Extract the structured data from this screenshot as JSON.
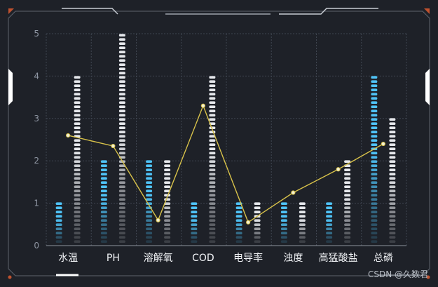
{
  "watermark": "CSDN @久数君",
  "colors": {
    "background": "#1e2128",
    "bar_blue": "#4fc3f7",
    "bar_white": "#e6e8ec",
    "line": "#d8c24a",
    "frame": "#8e949d",
    "accent": "#c0522f"
  },
  "chart_data": {
    "type": "bar",
    "categories": [
      "水温",
      "PH",
      "溶解氧",
      "COD",
      "电导率",
      "浊度",
      "高猛酸盐",
      "总磷"
    ],
    "series": [
      {
        "type": "bar",
        "style": "pictorial-segments",
        "values": [
          1,
          2,
          2,
          1,
          1,
          1,
          1,
          4
        ],
        "color": "#4fc3f7"
      },
      {
        "type": "bar",
        "style": "pictorial-segments",
        "values": [
          4,
          5,
          2,
          4,
          1,
          1,
          2,
          3
        ],
        "color": "#e6e8ec"
      },
      {
        "type": "line",
        "values": [
          2.6,
          2.35,
          0.6,
          3.3,
          0.55,
          1.25,
          1.8,
          2.4
        ],
        "color": "#d8c24a"
      }
    ],
    "yticks": [
      "0",
      "1",
      "2",
      "3",
      "4",
      "5"
    ],
    "ylim": [
      0,
      5
    ],
    "grid": true,
    "legend": "none"
  }
}
